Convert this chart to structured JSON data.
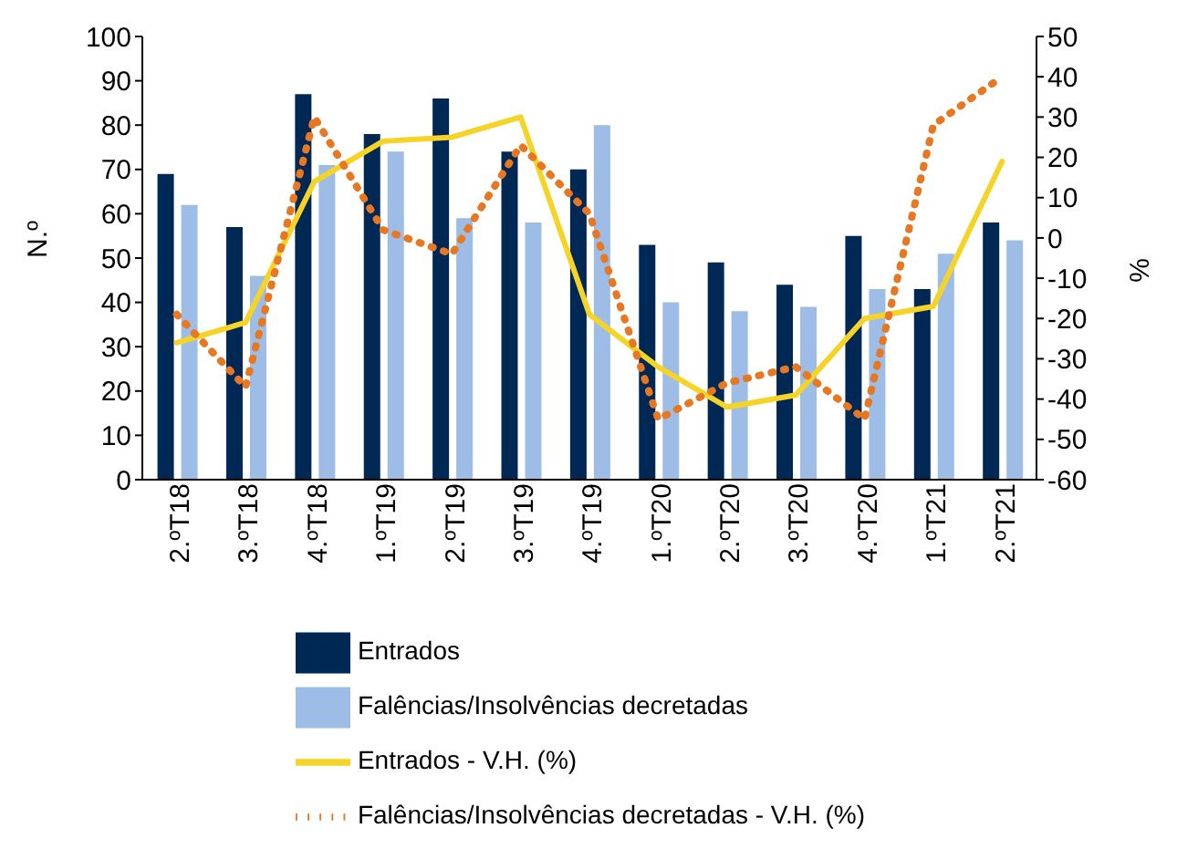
{
  "chart_data": {
    "type": "bar",
    "categories": [
      "2.ºT18",
      "3.ºT18",
      "4.ºT18",
      "1.ºT19",
      "2.ºT19",
      "3.ºT19",
      "4.ºT19",
      "1.ºT20",
      "2.ºT20",
      "3.ºT20",
      "4.ºT20",
      "1.ºT21",
      "2.ºT21"
    ],
    "series": [
      {
        "name": "Entrados",
        "color": "#002855",
        "values": [
          69,
          57,
          87,
          78,
          86,
          74,
          70,
          53,
          49,
          44,
          55,
          43,
          58
        ]
      },
      {
        "name": "Falências/Insolvências decretadas",
        "color": "#9dbde6",
        "values": [
          62,
          46,
          71,
          74,
          59,
          58,
          80,
          40,
          38,
          39,
          43,
          51,
          54
        ]
      },
      {
        "name": "Entrados - V.H. (%)",
        "type": "line",
        "axis": "y2",
        "color": "#f5d327",
        "line_style": "solid",
        "values": [
          -26,
          -21,
          14,
          24,
          25,
          30,
          -19,
          -32,
          -42,
          -39,
          -20,
          -17,
          19
        ]
      },
      {
        "name": "Falências/Insolvências decretadas - V.H. (%)",
        "type": "line",
        "axis": "y2",
        "color": "#e87722",
        "line_style": "dotted",
        "values": [
          -19,
          -37,
          30,
          2,
          -4,
          23,
          6,
          -45,
          -36,
          -32,
          -45,
          28,
          40
        ]
      }
    ],
    "ylabel": "N.º",
    "y2label": "%",
    "ylim": [
      0,
      100
    ],
    "yticks": [
      0,
      10,
      20,
      30,
      40,
      50,
      60,
      70,
      80,
      90,
      100
    ],
    "y2lim": [
      -60,
      50
    ],
    "y2ticks": [
      -60,
      -50,
      -40,
      -30,
      -20,
      -10,
      0,
      10,
      20,
      30,
      40,
      50
    ],
    "grid": false,
    "legend": "bottom",
    "marker": "none"
  }
}
